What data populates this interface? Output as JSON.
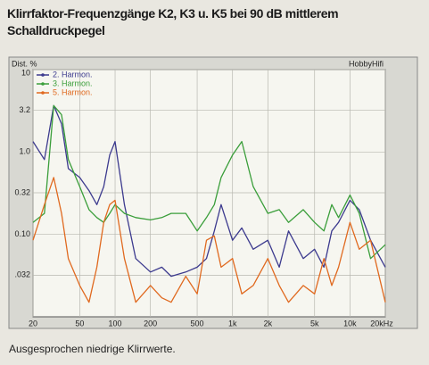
{
  "chart_data": {
    "type": "line",
    "title": "Klirrfaktor-Frequenzgänge K2, K3 u. K5 bei 90 dB mittlerem Schalldruckpegel",
    "caption": "Ausgesprochen niedrige Klirrwerte.",
    "y_label": "Dist. %",
    "brand": "HobbyHifi",
    "x": [
      20,
      25,
      30,
      35,
      40,
      50,
      60,
      70,
      80,
      90,
      100,
      120,
      150,
      200,
      250,
      300,
      400,
      500,
      600,
      700,
      800,
      1000,
      1200,
      1500,
      2000,
      2500,
      3000,
      4000,
      5000,
      6000,
      7000,
      8000,
      10000,
      12000,
      15000,
      20000
    ],
    "series": [
      {
        "name": "2. Harmon.",
        "color": "#3c3a8e",
        "values": [
          1.34,
          0.81,
          3.66,
          2.2,
          0.63,
          0.49,
          0.34,
          0.23,
          0.38,
          0.92,
          1.34,
          0.23,
          0.051,
          0.035,
          0.04,
          0.031,
          0.035,
          0.04,
          0.051,
          0.11,
          0.23,
          0.085,
          0.12,
          0.066,
          0.085,
          0.04,
          0.11,
          0.051,
          0.066,
          0.04,
          0.11,
          0.14,
          0.26,
          0.2,
          0.085,
          0.04
        ]
      },
      {
        "name": "3. Harmon.",
        "color": "#3a9e3a",
        "values": [
          0.14,
          0.18,
          3.66,
          2.84,
          0.81,
          0.38,
          0.2,
          0.16,
          0.14,
          0.18,
          0.23,
          0.18,
          0.16,
          0.15,
          0.16,
          0.18,
          0.18,
          0.11,
          0.16,
          0.23,
          0.49,
          0.92,
          1.34,
          0.38,
          0.18,
          0.2,
          0.14,
          0.2,
          0.14,
          0.11,
          0.23,
          0.16,
          0.3,
          0.18,
          0.051,
          0.075
        ]
      },
      {
        "name": "5. Harmon.",
        "color": "#e0691f",
        "values": [
          0.085,
          0.23,
          0.49,
          0.18,
          0.051,
          0.024,
          0.015,
          0.04,
          0.14,
          0.23,
          0.26,
          0.051,
          0.015,
          0.024,
          0.017,
          0.015,
          0.031,
          0.019,
          0.085,
          0.096,
          0.04,
          0.051,
          0.019,
          0.024,
          0.051,
          0.024,
          0.015,
          0.024,
          0.019,
          0.051,
          0.024,
          0.04,
          0.14,
          0.066,
          0.085,
          0.015
        ]
      }
    ],
    "xlim": [
      20,
      20000
    ],
    "xticks": [
      20,
      50,
      100,
      200,
      500,
      {
        "value": 1000,
        "label": "1k"
      },
      {
        "value": 2000,
        "label": "2k"
      },
      {
        "value": 5000,
        "label": "5k"
      },
      {
        "value": 10000,
        "label": "10k"
      },
      {
        "value": 20000,
        "label": "20kHz"
      }
    ],
    "ylim": [
      0.01,
      10
    ],
    "yticks": [
      {
        "value": 0.032,
        "label": ".032"
      },
      {
        "value": 0.1,
        "label": "0.10"
      },
      0.32,
      {
        "value": 1,
        "label": "1.0"
      },
      3.2,
      10
    ],
    "xscale": "log",
    "yscale": "log",
    "grid": true,
    "legend": "upper-left"
  }
}
